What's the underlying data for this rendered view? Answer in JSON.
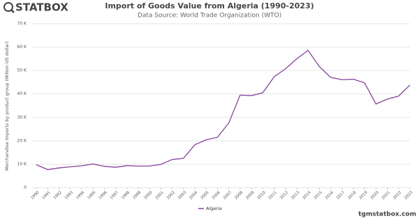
{
  "chart_data": {
    "type": "line",
    "title": "Import of Goods Value from Algeria (1990-2023)",
    "subtitle": "Data Source: World Trade Organization (WTO)",
    "logo": "STATBOX",
    "footer": "tgmstatbox.com",
    "y_label": "Merchandise imports by product group (Million US dollar)",
    "categories": [
      "1990",
      "1991",
      "1992",
      "1993",
      "1994",
      "1995",
      "1996",
      "1997",
      "1998",
      "1999",
      "2000",
      "2001",
      "2002",
      "2003",
      "2004",
      "2005",
      "2006",
      "2007",
      "2008",
      "2009",
      "2010",
      "2011",
      "2012",
      "2013",
      "2014",
      "2015",
      "2016",
      "2017",
      "2018",
      "2019",
      "2020",
      "2021",
      "2022",
      "2023"
    ],
    "series": [
      {
        "name": "Algeria",
        "color": "#84439b",
        "values": [
          9800,
          7700,
          8400,
          8900,
          9300,
          10100,
          9100,
          8700,
          9400,
          9200,
          9200,
          9900,
          12000,
          12500,
          18300,
          20400,
          21500,
          27600,
          39500,
          39300,
          40500,
          47300,
          50700,
          55000,
          58600,
          51700,
          47100,
          46100,
          46300,
          44700,
          35700,
          37800,
          39100,
          43800
        ]
      }
    ],
    "ylim": [
      0,
      70000
    ],
    "yticks": [
      0,
      {
        "value": 10000,
        "label": "10 K"
      },
      {
        "value": 20000,
        "label": "20 K"
      },
      {
        "value": 30000,
        "label": "30 K"
      },
      {
        "value": 40000,
        "label": "40 K"
      },
      {
        "value": 50000,
        "label": "50 K"
      },
      {
        "value": 60000,
        "label": "60 K"
      },
      {
        "value": 70000,
        "label": "70 K"
      }
    ],
    "grid": true
  }
}
